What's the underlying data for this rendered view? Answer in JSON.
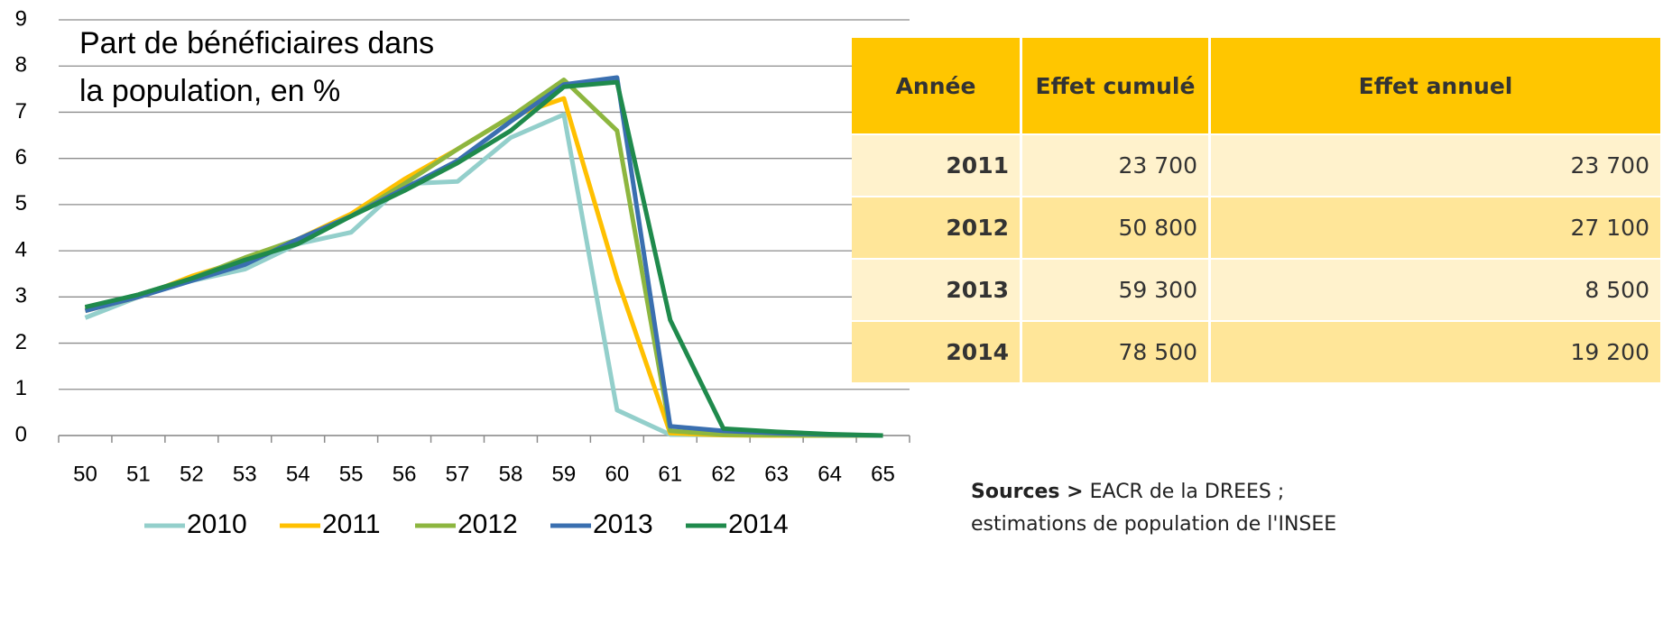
{
  "chart_data": {
    "type": "line",
    "title": [
      "Part de bénéficiaires dans",
      "la population, en %"
    ],
    "categories": [
      "50",
      "51",
      "52",
      "53",
      "54",
      "55",
      "56",
      "57",
      "58",
      "59",
      "60",
      "61",
      "62",
      "63",
      "64",
      "65"
    ],
    "series": [
      {
        "name": "2010",
        "color": "#93cfcb",
        "values": [
          2.55,
          3.0,
          3.35,
          3.6,
          4.15,
          4.4,
          5.45,
          5.5,
          6.45,
          6.95,
          0.55,
          0.02,
          0.01,
          0,
          0,
          0
        ]
      },
      {
        "name": "2011",
        "color": "#ffc000",
        "values": [
          2.7,
          3.0,
          3.45,
          3.8,
          4.25,
          4.8,
          5.55,
          6.2,
          6.9,
          7.3,
          3.4,
          0.05,
          0.01,
          0,
          0,
          0
        ]
      },
      {
        "name": "2012",
        "color": "#8db63f",
        "values": [
          2.75,
          3.05,
          3.4,
          3.85,
          4.25,
          4.75,
          5.45,
          6.2,
          6.9,
          7.7,
          6.6,
          0.1,
          0.02,
          0.01,
          0,
          0
        ]
      },
      {
        "name": "2013",
        "color": "#3a6fb0",
        "values": [
          2.7,
          3.0,
          3.35,
          3.7,
          4.25,
          4.75,
          5.35,
          5.95,
          6.8,
          7.6,
          7.75,
          0.2,
          0.1,
          0.05,
          0.02,
          0
        ]
      },
      {
        "name": "2014",
        "color": "#1f8a4c",
        "values": [
          2.78,
          3.05,
          3.4,
          3.8,
          4.15,
          4.75,
          5.3,
          5.9,
          6.6,
          7.55,
          7.65,
          2.5,
          0.15,
          0.08,
          0.03,
          0
        ]
      }
    ],
    "ylim": [
      0,
      9
    ],
    "yticks": [
      0,
      1,
      2,
      3,
      4,
      5,
      6,
      7,
      8,
      9
    ],
    "grid": true,
    "legend": "bottom"
  },
  "table": {
    "header": [
      "Année",
      "Effet cumulé",
      "Effet annuel"
    ],
    "rows": [
      [
        "2011",
        "23 700",
        "23 700"
      ],
      [
        "2012",
        "50 800",
        "27 100"
      ],
      [
        "2013",
        "59 300",
        "8 500"
      ],
      [
        "2014",
        "78 500",
        "19 200"
      ]
    ]
  },
  "sources": {
    "label": "Sources >",
    "lines": [
      "EACR de la DREES ;",
      "estimations de population de l'INSEE"
    ]
  }
}
